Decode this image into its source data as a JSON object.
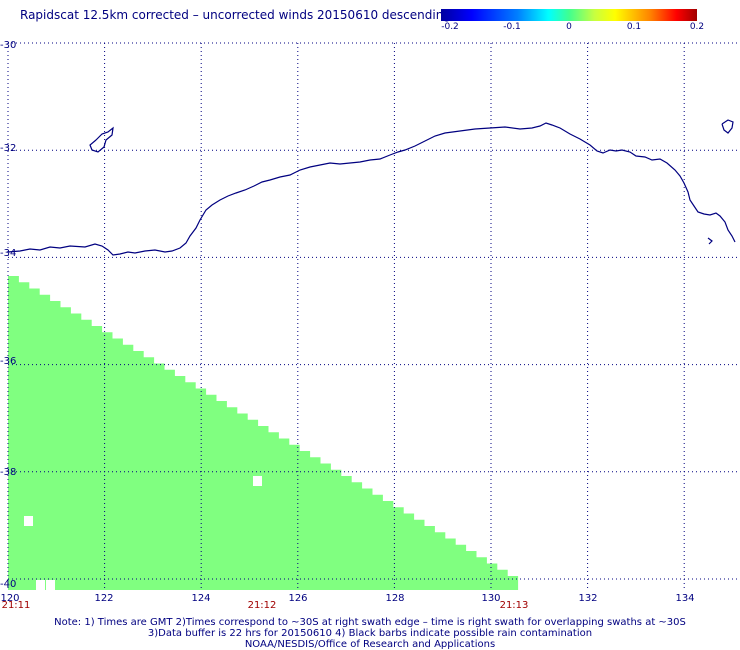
{
  "title": "Rapidscat 12.5km corrected – uncorrected winds 20150610 descending",
  "colorbar": {
    "ticks": [
      "-0.2",
      "-0.1",
      "0",
      "0.1",
      "0.2"
    ],
    "tick_values": [
      -0.2,
      -0.1,
      0,
      0.1,
      0.2
    ]
  },
  "map": {
    "lon_range": [
      120,
      135
    ],
    "lat_range": [
      -40,
      -30
    ],
    "lat_labels": [
      "-30",
      "-32",
      "-34",
      "-36",
      "-38",
      "-40"
    ],
    "lon_labels": [
      "120",
      "122",
      "124",
      "126",
      "128",
      "130",
      "132",
      "134"
    ],
    "time_labels": [
      "21:11",
      "21:12",
      "21:13"
    ],
    "time_label_lons": [
      120,
      125.6,
      130.9
    ],
    "grid": true,
    "swath_color": "#80ff80",
    "coast_color": "#000080"
  },
  "notes": {
    "line1": "Note: 1) Times are GMT 2)Times correspond to ~30S at right swath edge – time is right swath for overlapping swaths at ~30S",
    "line2": "3)Data buffer is 22 hrs for 20150610 4) Black barbs indicate possible rain contamination",
    "line3": "NOAA/NESDIS/Office of Research and Applications"
  }
}
